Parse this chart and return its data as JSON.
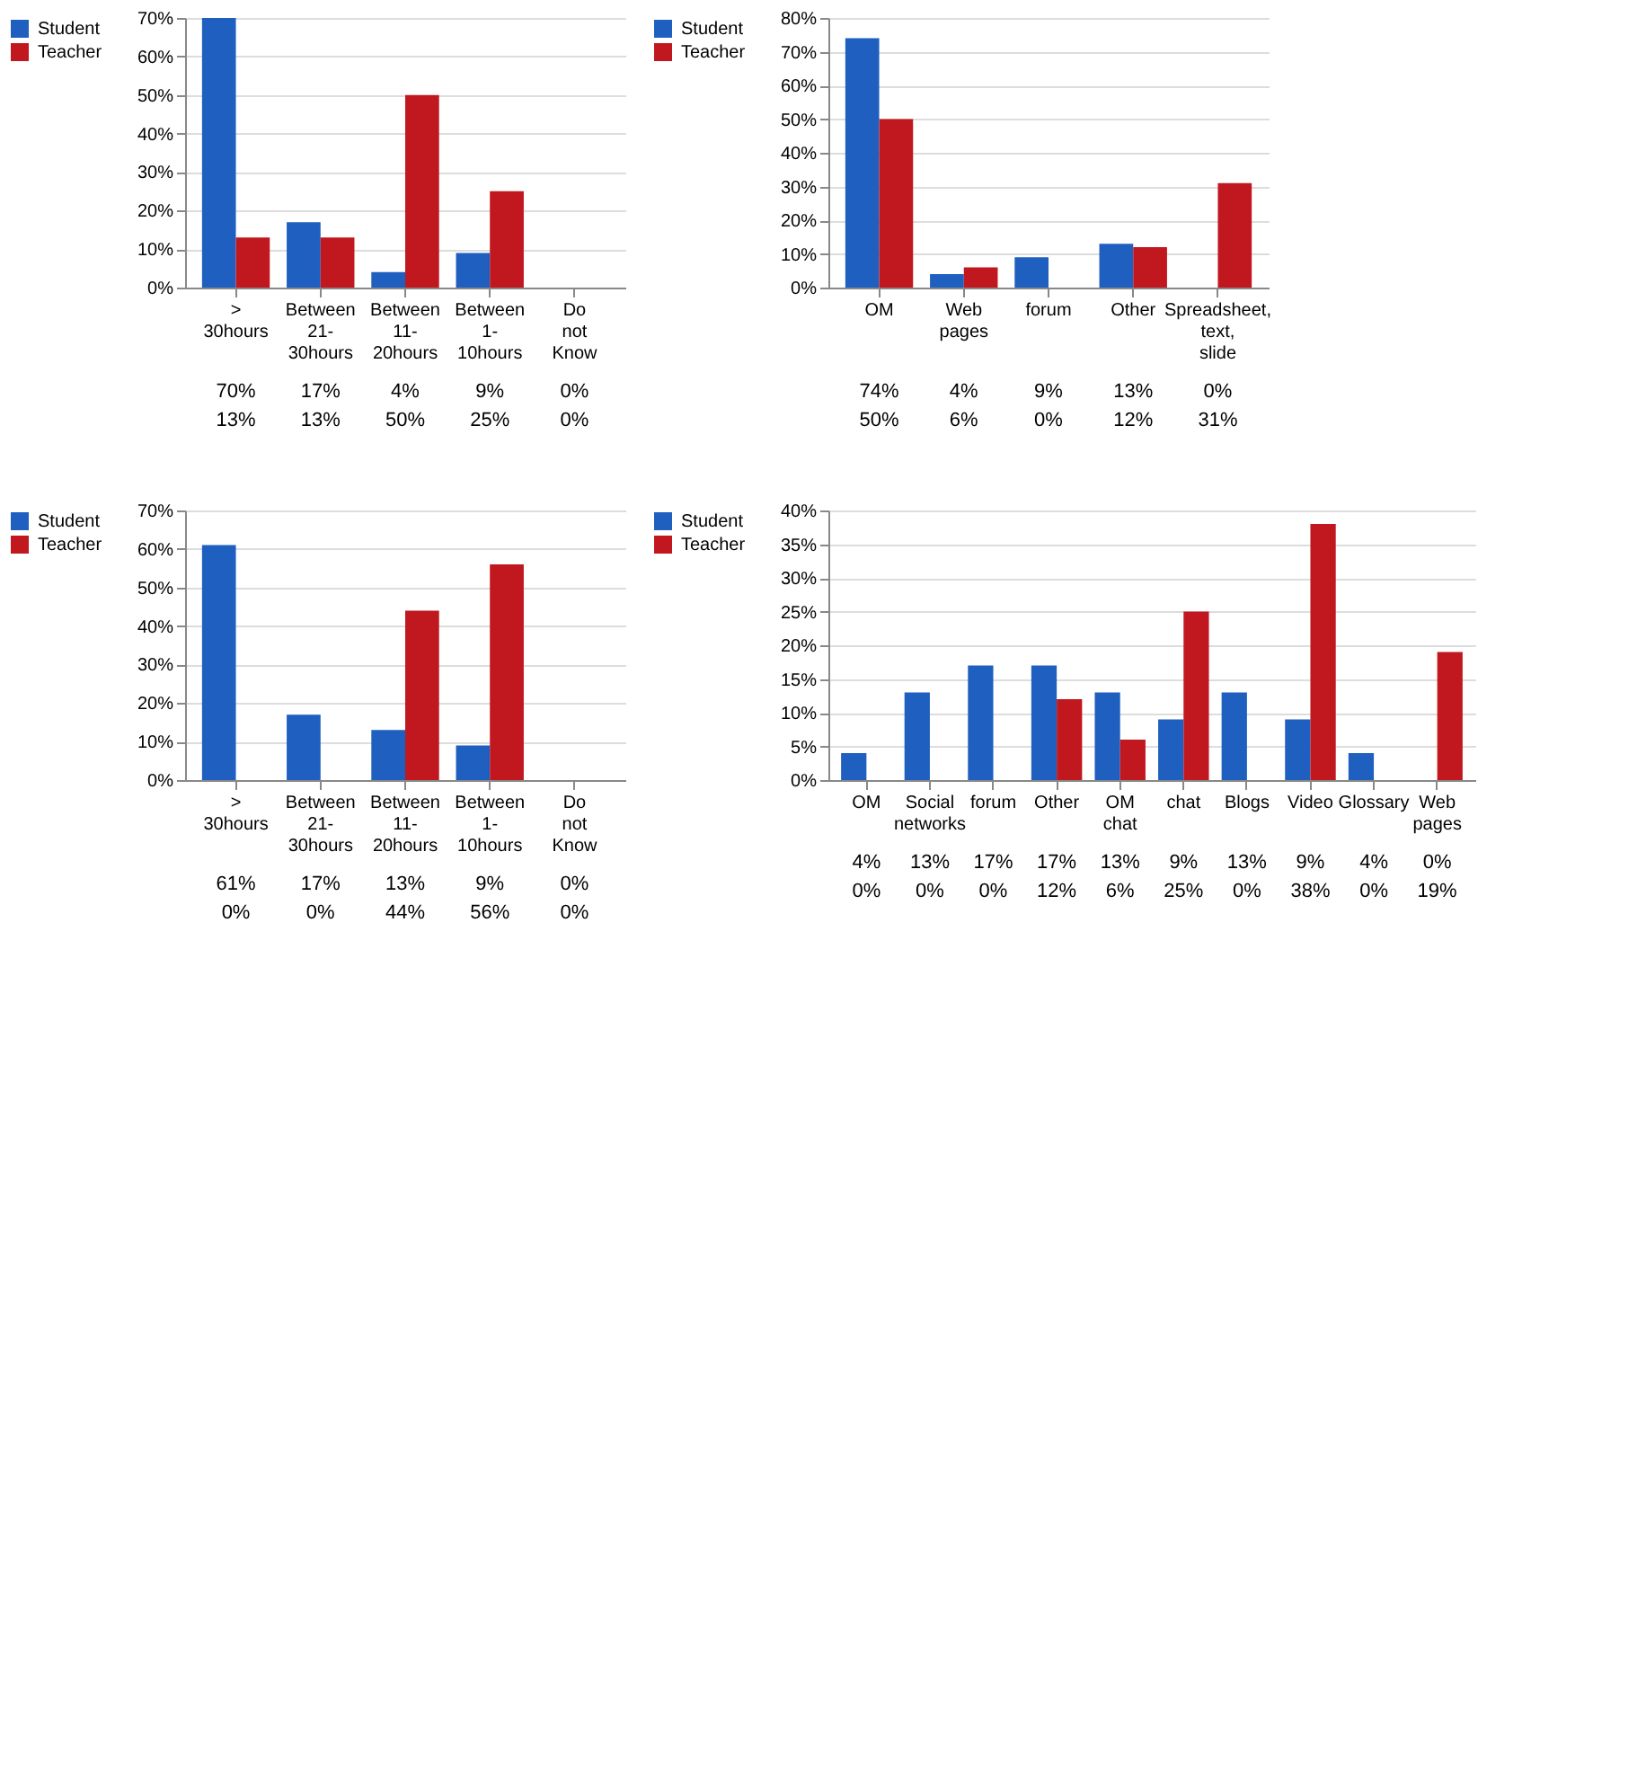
{
  "chart_data": [
    {
      "type": "bar",
      "categories": [
        "> 30hours",
        "Between 21-30hours",
        "Between 11-20hours",
        "Between 1-10hours",
        "Do not Know"
      ],
      "series": [
        {
          "name": "Student",
          "color": "#1f5fbf",
          "values": [
            70,
            17,
            4,
            9,
            0
          ],
          "value_labels": [
            "70%",
            "17%",
            "4%",
            "9%",
            "0%"
          ]
        },
        {
          "name": "Teacher",
          "color": "#c0181e",
          "values": [
            13,
            13,
            50,
            25,
            0
          ],
          "value_labels": [
            "13%",
            "13%",
            "50%",
            "25%",
            "0%"
          ]
        }
      ],
      "ylim": [
        0,
        70
      ],
      "yticks": [
        {
          "value": 0,
          "label": "0%"
        },
        {
          "value": 10,
          "label": "10%"
        },
        {
          "value": 20,
          "label": "20%"
        },
        {
          "value": 30,
          "label": "30%"
        },
        {
          "value": 40,
          "label": "40%"
        },
        {
          "value": 50,
          "label": "50%"
        },
        {
          "value": 60,
          "label": "60%"
        },
        {
          "value": 70,
          "label": "70%"
        }
      ],
      "grid": "y",
      "legend": "left"
    },
    {
      "type": "bar",
      "categories": [
        "OM",
        "Web pages",
        "forum",
        "Other",
        "Spreadsheet, text, slide"
      ],
      "series": [
        {
          "name": "Student",
          "color": "#1f5fbf",
          "values": [
            74,
            4,
            9,
            13,
            0
          ],
          "value_labels": [
            "74%",
            "4%",
            "9%",
            "13%",
            "0%"
          ]
        },
        {
          "name": "Teacher",
          "color": "#c0181e",
          "values": [
            50,
            6,
            0,
            12,
            31
          ],
          "value_labels": [
            "50%",
            "6%",
            "0%",
            "12%",
            "31%"
          ]
        }
      ],
      "ylim": [
        0,
        80
      ],
      "yticks": [
        {
          "value": 0,
          "label": "0%"
        },
        {
          "value": 10,
          "label": "10%"
        },
        {
          "value": 20,
          "label": "20%"
        },
        {
          "value": 30,
          "label": "30%"
        },
        {
          "value": 40,
          "label": "40%"
        },
        {
          "value": 50,
          "label": "50%"
        },
        {
          "value": 60,
          "label": "60%"
        },
        {
          "value": 70,
          "label": "70%"
        },
        {
          "value": 80,
          "label": "80%"
        }
      ],
      "grid": "y",
      "legend": "left"
    },
    {
      "type": "bar",
      "categories": [
        "> 30hours",
        "Between 21-30hours",
        "Between 11-20hours",
        "Between 1-10hours",
        "Do not Know"
      ],
      "series": [
        {
          "name": "Student",
          "color": "#1f5fbf",
          "values": [
            61,
            17,
            13,
            9,
            0
          ],
          "value_labels": [
            "61%",
            "17%",
            "13%",
            "9%",
            "0%"
          ]
        },
        {
          "name": "Teacher",
          "color": "#c0181e",
          "values": [
            0,
            0,
            44,
            56,
            0
          ],
          "value_labels": [
            "0%",
            "0%",
            "44%",
            "56%",
            "0%"
          ]
        }
      ],
      "ylim": [
        0,
        70
      ],
      "yticks": [
        {
          "value": 0,
          "label": "0%"
        },
        {
          "value": 10,
          "label": "10%"
        },
        {
          "value": 20,
          "label": "20%"
        },
        {
          "value": 30,
          "label": "30%"
        },
        {
          "value": 40,
          "label": "40%"
        },
        {
          "value": 50,
          "label": "50%"
        },
        {
          "value": 60,
          "label": "60%"
        },
        {
          "value": 70,
          "label": "70%"
        }
      ],
      "grid": "y",
      "legend": "left"
    },
    {
      "type": "bar",
      "categories": [
        "OM",
        "Social networks",
        "forum",
        "Other",
        "OM chat",
        "chat",
        "Blogs",
        "Video",
        "Glossary",
        "Web pages"
      ],
      "series": [
        {
          "name": "Student",
          "color": "#1f5fbf",
          "values": [
            4,
            13,
            17,
            17,
            13,
            9,
            13,
            9,
            4,
            0
          ],
          "value_labels": [
            "4%",
            "13%",
            "17%",
            "17%",
            "13%",
            "9%",
            "13%",
            "9%",
            "4%",
            "0%"
          ]
        },
        {
          "name": "Teacher",
          "color": "#c0181e",
          "values": [
            0,
            0,
            0,
            12,
            6,
            25,
            0,
            38,
            0,
            19
          ],
          "value_labels": [
            "0%",
            "0%",
            "0%",
            "12%",
            "6%",
            "25%",
            "0%",
            "38%",
            "0%",
            "19%"
          ]
        }
      ],
      "ylim": [
        0,
        40
      ],
      "yticks": [
        {
          "value": 0,
          "label": "0%"
        },
        {
          "value": 5,
          "label": "5%"
        },
        {
          "value": 10,
          "label": "10%"
        },
        {
          "value": 15,
          "label": "15%"
        },
        {
          "value": 20,
          "label": "20%"
        },
        {
          "value": 25,
          "label": "25%"
        },
        {
          "value": 30,
          "label": "30%"
        },
        {
          "value": 35,
          "label": "35%"
        },
        {
          "value": 40,
          "label": "40%"
        }
      ],
      "grid": "y",
      "legend": "left"
    }
  ]
}
